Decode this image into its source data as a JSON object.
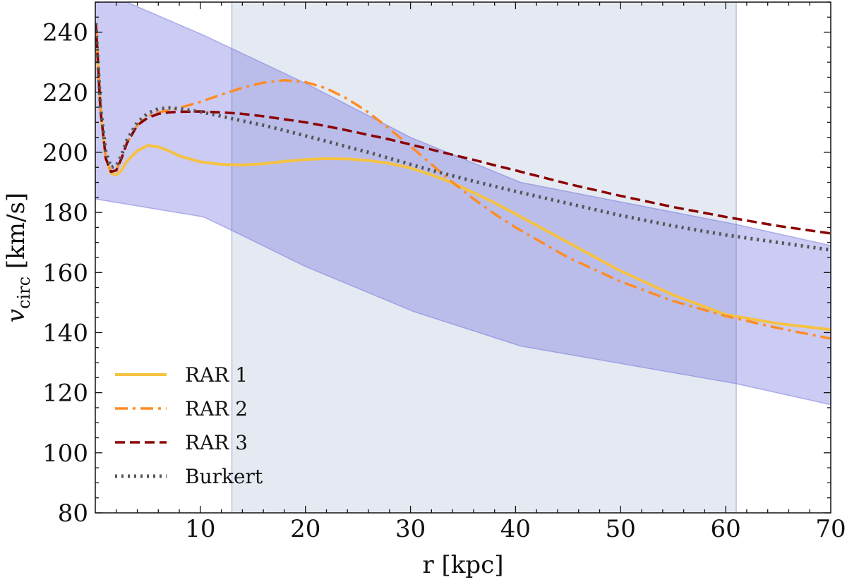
{
  "chart_data": {
    "type": "line",
    "title": "",
    "xlabel": "r [kpc]",
    "ylabel_main": "v",
    "ylabel_sub": "circ",
    "ylabel_unit": " [km/s]",
    "xlim": [
      0,
      70
    ],
    "ylim": [
      80,
      250
    ],
    "xticks": [
      10,
      20,
      30,
      40,
      50,
      60,
      70
    ],
    "yticks": [
      80,
      100,
      120,
      140,
      160,
      180,
      200,
      220,
      240
    ],
    "grid": false,
    "legend_position": "bottom-left",
    "shaded_region": {
      "x_start": 13,
      "x_end": 61,
      "color": "#ccd5e6"
    },
    "uncertainty_band": {
      "color": "#6b6bdc",
      "upper": [
        [
          0,
          250
        ],
        [
          3,
          250
        ],
        [
          10.3,
          239
        ],
        [
          20,
          223
        ],
        [
          30,
          205
        ],
        [
          40.5,
          190
        ],
        [
          61,
          176
        ],
        [
          70,
          169
        ]
      ],
      "lower": [
        [
          0,
          184.5
        ],
        [
          10.3,
          178.5
        ],
        [
          13,
          174
        ],
        [
          20,
          162
        ],
        [
          30.3,
          147
        ],
        [
          40.5,
          135.5
        ],
        [
          61,
          123
        ],
        [
          70,
          116
        ]
      ]
    },
    "series": [
      {
        "name": "RAR 1",
        "color": "#f5c242",
        "dash": "",
        "width": 4,
        "x": [
          0.05,
          0.5,
          1.0,
          1.5,
          2.0,
          2.5,
          3.0,
          4.0,
          5.0,
          6.0,
          7.0,
          8.0,
          10.0,
          12.0,
          14.0,
          16.0,
          18.0,
          20.0,
          22.0,
          24.0,
          26.0,
          28.0,
          30.0,
          32.0,
          34.0,
          36.0,
          38.0,
          40.0,
          45.0,
          50.0,
          55.0,
          60.0,
          65.0,
          70.0
        ],
        "y": [
          243,
          214,
          198,
          193,
          192.5,
          194,
          197,
          200.5,
          202.3,
          201.8,
          200.5,
          198.8,
          196.8,
          196,
          195.8,
          196.2,
          197,
          197.6,
          197.9,
          197.8,
          197.3,
          196.3,
          194.8,
          192.5,
          189.8,
          186.6,
          183.2,
          179.5,
          170,
          160.5,
          152.5,
          146,
          143,
          141
        ]
      },
      {
        "name": "RAR 2",
        "color": "#ff8c24",
        "dash": "18,7,4,7",
        "width": 3.5,
        "x": [
          0.05,
          0.5,
          1.0,
          1.5,
          2.0,
          2.5,
          3.0,
          4.0,
          5.0,
          6.0,
          7.0,
          8.0,
          10.0,
          12.0,
          14.0,
          16.0,
          18.0,
          20.0,
          22.0,
          24.0,
          26.0,
          28.0,
          30.0,
          32.0,
          34.0,
          36.0,
          38.0,
          40.0,
          45.0,
          50.0,
          55.0,
          60.0,
          65.0,
          70.0
        ],
        "y": [
          243,
          214,
          198,
          193.5,
          194,
          198,
          203,
          209,
          212,
          213.3,
          214,
          214.8,
          216.8,
          219.2,
          221.5,
          223.2,
          224,
          223.4,
          221.3,
          217.8,
          213.3,
          207.8,
          202,
          196,
          190,
          184.5,
          179.5,
          175,
          165,
          157,
          150.5,
          145.5,
          141.5,
          138
        ]
      },
      {
        "name": "RAR 3",
        "color": "#8b0000",
        "dash": "14,7",
        "width": 3.5,
        "x": [
          0.05,
          0.5,
          1.0,
          1.5,
          2.0,
          2.5,
          3.0,
          4.0,
          5.0,
          6.0,
          7.0,
          8.0,
          10.0,
          12.0,
          14.0,
          16.0,
          18.0,
          20.0,
          22.0,
          24.0,
          26.0,
          28.0,
          30.0,
          32.0,
          34.0,
          36.0,
          38.0,
          40.0,
          45.0,
          50.0,
          55.0,
          60.0,
          65.0,
          70.0
        ],
        "y": [
          243,
          214,
          198,
          193.5,
          194,
          198,
          203,
          209,
          211.5,
          212.8,
          213.3,
          213.5,
          213.6,
          213.3,
          212.8,
          212,
          211,
          210,
          208.7,
          207.3,
          205.8,
          204.3,
          202.6,
          200.9,
          199.2,
          197.5,
          195.7,
          194,
          189.5,
          185.5,
          181.8,
          178.5,
          175.5,
          173
        ]
      },
      {
        "name": "Burkert",
        "color": "#555555",
        "dash": "3,6",
        "width": 5,
        "x": [
          0.05,
          0.5,
          1.0,
          1.5,
          2.0,
          2.5,
          3.0,
          4.0,
          5.0,
          6.0,
          7.0,
          8.0,
          10.0,
          12.0,
          14.0,
          16.0,
          18.0,
          20.0,
          22.0,
          24.0,
          26.0,
          28.0,
          30.0,
          32.0,
          34.0,
          36.0,
          38.0,
          40.0,
          45.0,
          50.0,
          55.0,
          60.0,
          65.0,
          70.0
        ],
        "y": [
          243,
          215,
          200,
          195,
          195.5,
          199,
          204,
          210,
          213,
          214.5,
          214.8,
          214.5,
          213.5,
          212,
          210.5,
          209,
          207.3,
          205.5,
          203.7,
          201.8,
          200,
          198,
          196,
          194,
          192.2,
          190.4,
          188.7,
          187,
          183,
          179,
          175.5,
          172.5,
          170,
          167.5
        ]
      }
    ]
  }
}
